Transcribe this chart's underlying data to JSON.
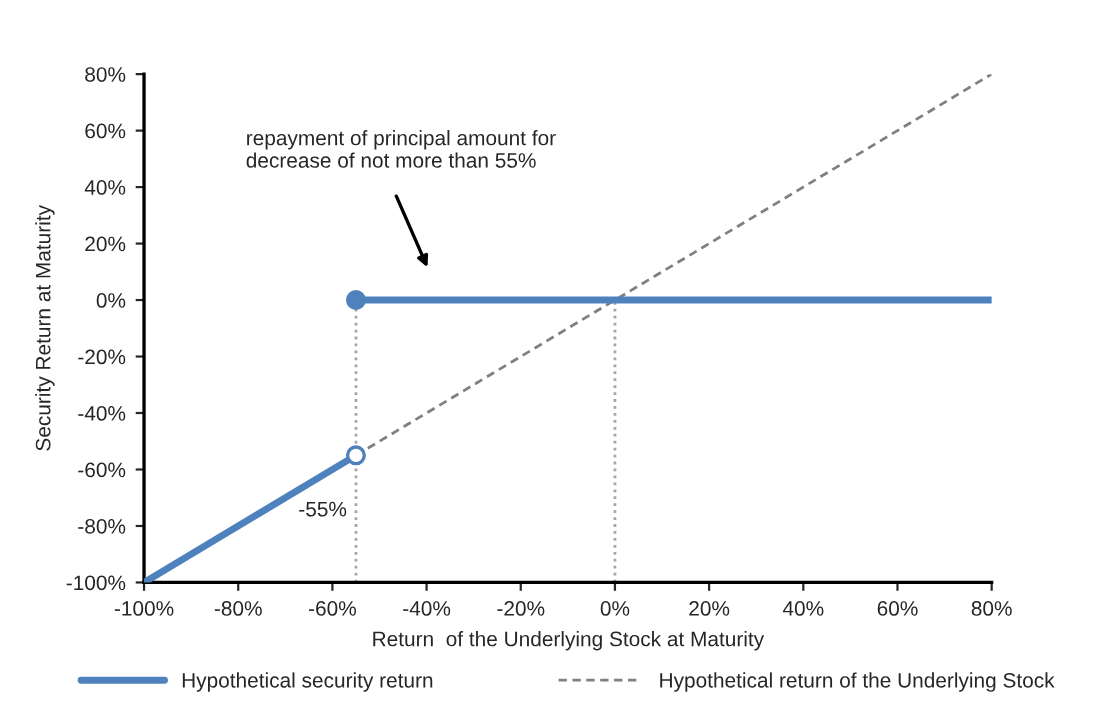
{
  "chart_data": {
    "type": "line",
    "xlabel": "Return  of the Underlying Stock at Maturity",
    "ylabel": "Security Return at Maturity",
    "xlim": [
      -100,
      80
    ],
    "ylim": [
      -100,
      80
    ],
    "xticks": [
      {
        "value": -100,
        "label": "-100%"
      },
      {
        "value": -80,
        "label": "-80%"
      },
      {
        "value": -60,
        "label": "-60%"
      },
      {
        "value": -40,
        "label": "-40%"
      },
      {
        "value": -20,
        "label": "-20%"
      },
      {
        "value": 0,
        "label": "0%"
      },
      {
        "value": 20,
        "label": "20%"
      },
      {
        "value": 40,
        "label": "40%"
      },
      {
        "value": 60,
        "label": "60%"
      },
      {
        "value": 80,
        "label": "80%"
      }
    ],
    "yticks": [
      {
        "value": -100,
        "label": "-100%"
      },
      {
        "value": -80,
        "label": "-80%"
      },
      {
        "value": -60,
        "label": "-60%"
      },
      {
        "value": -40,
        "label": "-40%"
      },
      {
        "value": -20,
        "label": "-20%"
      },
      {
        "value": 0,
        "label": "0%"
      },
      {
        "value": 20,
        "label": "20%"
      },
      {
        "value": 40,
        "label": "40%"
      },
      {
        "value": 60,
        "label": "60%"
      },
      {
        "value": 80,
        "label": "80%"
      }
    ],
    "series": [
      {
        "line_style": "dotted",
        "color": "#a6a6a6",
        "x": [
          -55,
          -55
        ],
        "values": [
          -100,
          0
        ]
      },
      {
        "line_style": "dotted",
        "color": "#a6a6a6",
        "x": [
          0,
          0
        ],
        "values": [
          -100,
          0
        ]
      },
      {
        "name": "Hypothetical return of the Underlying Stock",
        "line_style": "dashed",
        "color": "#808080",
        "x": [
          -55,
          80
        ],
        "values": [
          -55,
          80
        ]
      },
      {
        "name": "Hypothetical security return",
        "line_style": "solid",
        "color": "#4f81bd",
        "x": [
          -100,
          -55
        ],
        "values": [
          -100,
          -55
        ]
      },
      {
        "line_style": "solid",
        "color": "#4f81bd",
        "x": [
          -55,
          80
        ],
        "values": [
          0,
          0
        ]
      },
      {
        "type": "scatter",
        "marker": "circle",
        "color": "#4f81bd",
        "x": [
          -55
        ],
        "values": [
          0
        ]
      },
      {
        "type": "scatter",
        "marker": "circle",
        "color": "#ffffff",
        "x": [
          -55
        ],
        "values": [
          -55
        ]
      }
    ],
    "annotations": [
      "repayment of principal amount for\ndecrease of not more than 55%",
      {
        "text": "-55%",
        "x": -55,
        "y": -55
      }
    ],
    "grid": false,
    "legend": "bottom"
  }
}
